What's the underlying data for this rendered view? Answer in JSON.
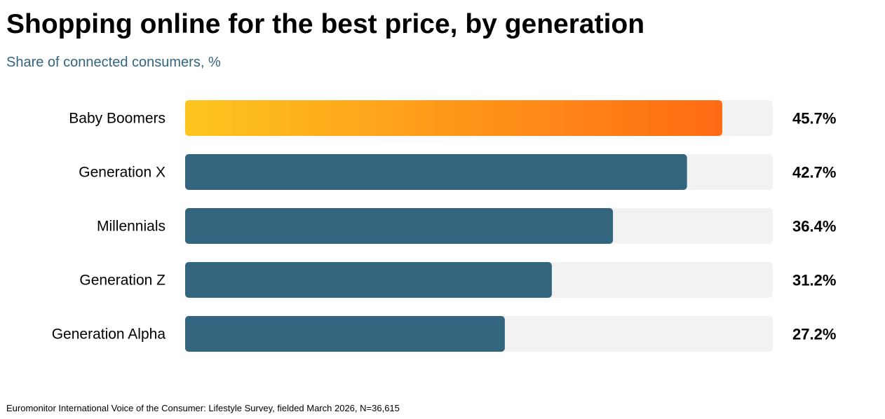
{
  "colors": {
    "highlight_start": "#fdc51f",
    "highlight_end": "#ff6a14",
    "bar": "#34657f",
    "track": "#f2f2f2",
    "subtitle": "#34657f"
  },
  "chart_data": {
    "type": "bar",
    "orientation": "horizontal",
    "title": "Shopping online for the best price, by generation",
    "subtitle": "Share of connected consumers, %",
    "categories": [
      "Baby Boomers",
      "Generation X",
      "Millennials",
      "Generation Z",
      "Generation Alpha"
    ],
    "values": [
      45.7,
      42.7,
      36.4,
      31.2,
      27.2
    ],
    "value_labels": [
      "45.7%",
      "42.7%",
      "36.4%",
      "31.2%",
      "27.2%"
    ],
    "xlim": [
      0,
      50
    ],
    "highlighted_category": "Baby Boomers",
    "grid": false,
    "legend": "none",
    "source": "Euromonitor International Voice of the Consumer: Lifestyle Survey, fielded March 2026, N=36,615"
  }
}
